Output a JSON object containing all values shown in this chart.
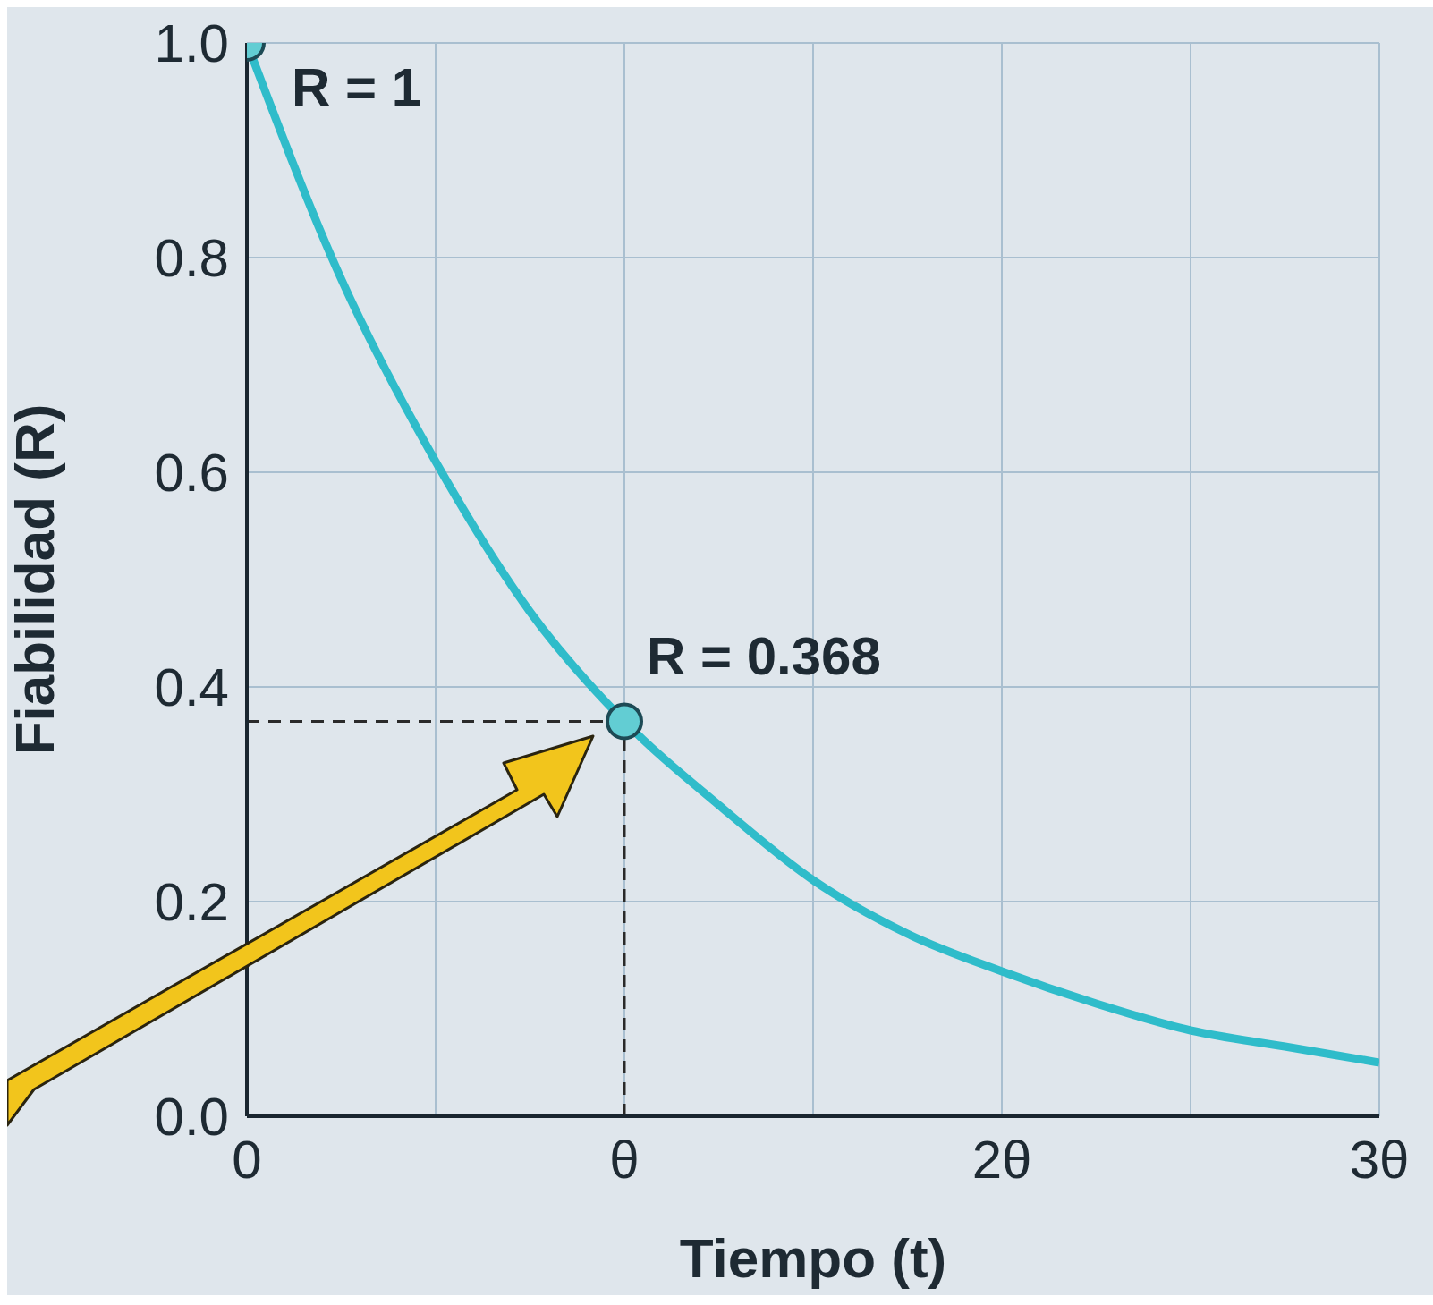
{
  "chart_data": {
    "type": "line",
    "xlabel": "Tiempo (t)",
    "ylabel": "Fiabilidad (R)",
    "xlim": [
      0,
      3
    ],
    "xticks": [
      0,
      {
        "value": 0.5,
        "label": null
      },
      {
        "value": 1,
        "label": "θ"
      },
      {
        "value": 1.5,
        "label": null
      },
      {
        "value": 2,
        "label": "2θ"
      },
      {
        "value": 2.5,
        "label": null
      },
      {
        "value": 3,
        "label": "3θ"
      }
    ],
    "ylim": [
      0,
      1
    ],
    "yticks": [
      {
        "value": 0,
        "label": "0.0"
      },
      0.2,
      0.4,
      0.6,
      0.8,
      {
        "value": 1,
        "label": "1.0"
      }
    ],
    "grid": true,
    "legend": false,
    "line_style": "solid",
    "series": [
      {
        "color": "#2fbcca",
        "x": [
          0,
          0.25,
          0.5,
          0.75,
          1,
          1.25,
          1.5,
          1.75,
          2,
          2.25,
          2.5,
          2.75,
          3
        ],
        "values": [
          1,
          0.78,
          0.61,
          0.47,
          0.368,
          0.29,
          0.22,
          0.17,
          0.135,
          0.105,
          0.08,
          0.065,
          0.05
        ]
      },
      {
        "type": "scatter",
        "color": "#62cdd3",
        "marker": "circle",
        "x": [
          0,
          1
        ],
        "values": [
          1,
          0.368
        ]
      }
    ],
    "ref_lines": [
      {
        "axis": "y",
        "value": 0.368,
        "line_style": "dashed",
        "color": "#2a2a2a"
      },
      {
        "axis": "x",
        "value": 1,
        "line_style": "dashed",
        "color": "#2a2a2a"
      }
    ],
    "annotations": [
      {
        "text": "R = 1",
        "x": 0,
        "y": 1
      },
      {
        "text": "R = 0.368",
        "x": 1,
        "y": 0.368
      }
    ]
  }
}
